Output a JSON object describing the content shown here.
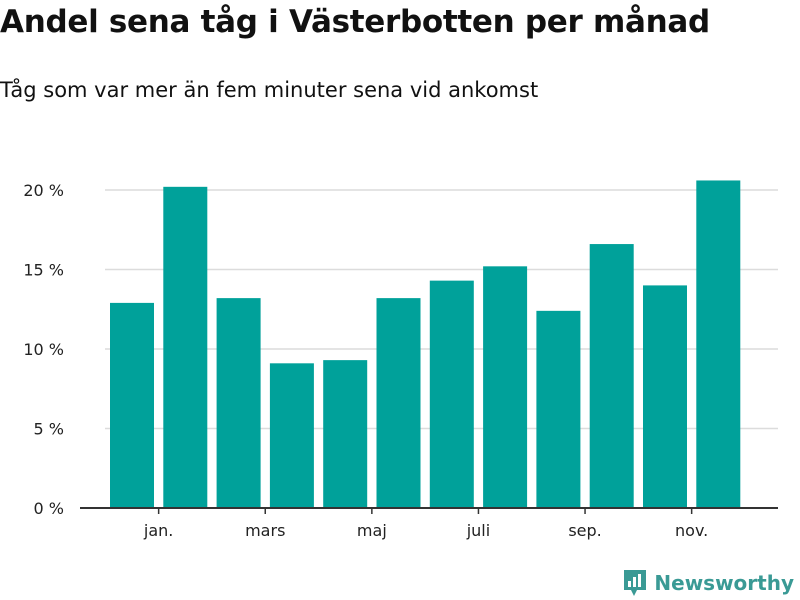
{
  "title": "Andel sena tåg i Västerbotten per månad",
  "subtitle": "Tåg som var mer än fem minuter sena vid ankomst",
  "brand": "Newsworthy",
  "colors": {
    "bar": "#00a19a",
    "grid": "#dcdcdc",
    "axis": "#333333",
    "brand": "#3a9a95"
  },
  "chart_data": {
    "type": "bar",
    "title": "Andel sena tåg i Västerbotten per månad",
    "subtitle": "Tåg som var mer än fem minuter sena vid ankomst",
    "xlabel": "",
    "ylabel": "",
    "ylim": [
      0,
      20
    ],
    "yticks": [
      0,
      5,
      10,
      15,
      20
    ],
    "ytick_labels": [
      "0 %",
      "5 %",
      "10 %",
      "15 %",
      "20 %"
    ],
    "xtick_labels": [
      "jan.",
      "mars",
      "maj",
      "juli",
      "sep.",
      "nov."
    ],
    "values": [
      12.9,
      20.2,
      13.2,
      9.1,
      9.3,
      13.2,
      14.3,
      15.2,
      12.4,
      16.6,
      14.0,
      20.6
    ],
    "grid": true
  }
}
